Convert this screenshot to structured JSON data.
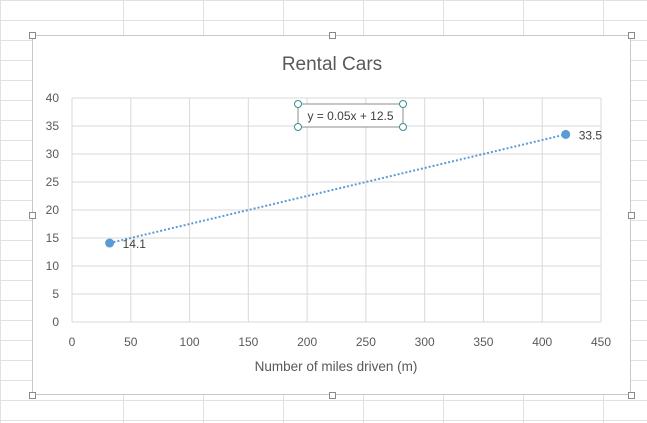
{
  "chart_data": {
    "type": "scatter",
    "title": "Rental Cars",
    "xlabel": "Number of miles driven (m)",
    "ylabel": "",
    "xlim": [
      0,
      450
    ],
    "ylim": [
      0,
      40
    ],
    "xticks": [
      0,
      50,
      100,
      150,
      200,
      250,
      300,
      350,
      400,
      450
    ],
    "yticks": [
      0,
      5,
      10,
      15,
      20,
      25,
      30,
      35,
      40
    ],
    "grid": true,
    "legend": "none",
    "series": [
      {
        "points": [
          {
            "x": 32,
            "y": 14.1,
            "label": "14.1"
          },
          {
            "x": 420,
            "y": 33.5,
            "label": "33.5"
          }
        ],
        "color": "#5b9bd5"
      }
    ],
    "trendline": {
      "type": "linear",
      "slope": 0.05,
      "intercept": 12.5,
      "x_range": [
        32,
        420
      ],
      "equation": "y = 0.05x + 12.5",
      "color": "#5b9bd5",
      "style": "dotted"
    }
  },
  "colors": {
    "series": "#5b9bd5",
    "gridline": "#d9d9d9",
    "text": "#595959",
    "sheet_gridline": "#e1e1e1"
  }
}
